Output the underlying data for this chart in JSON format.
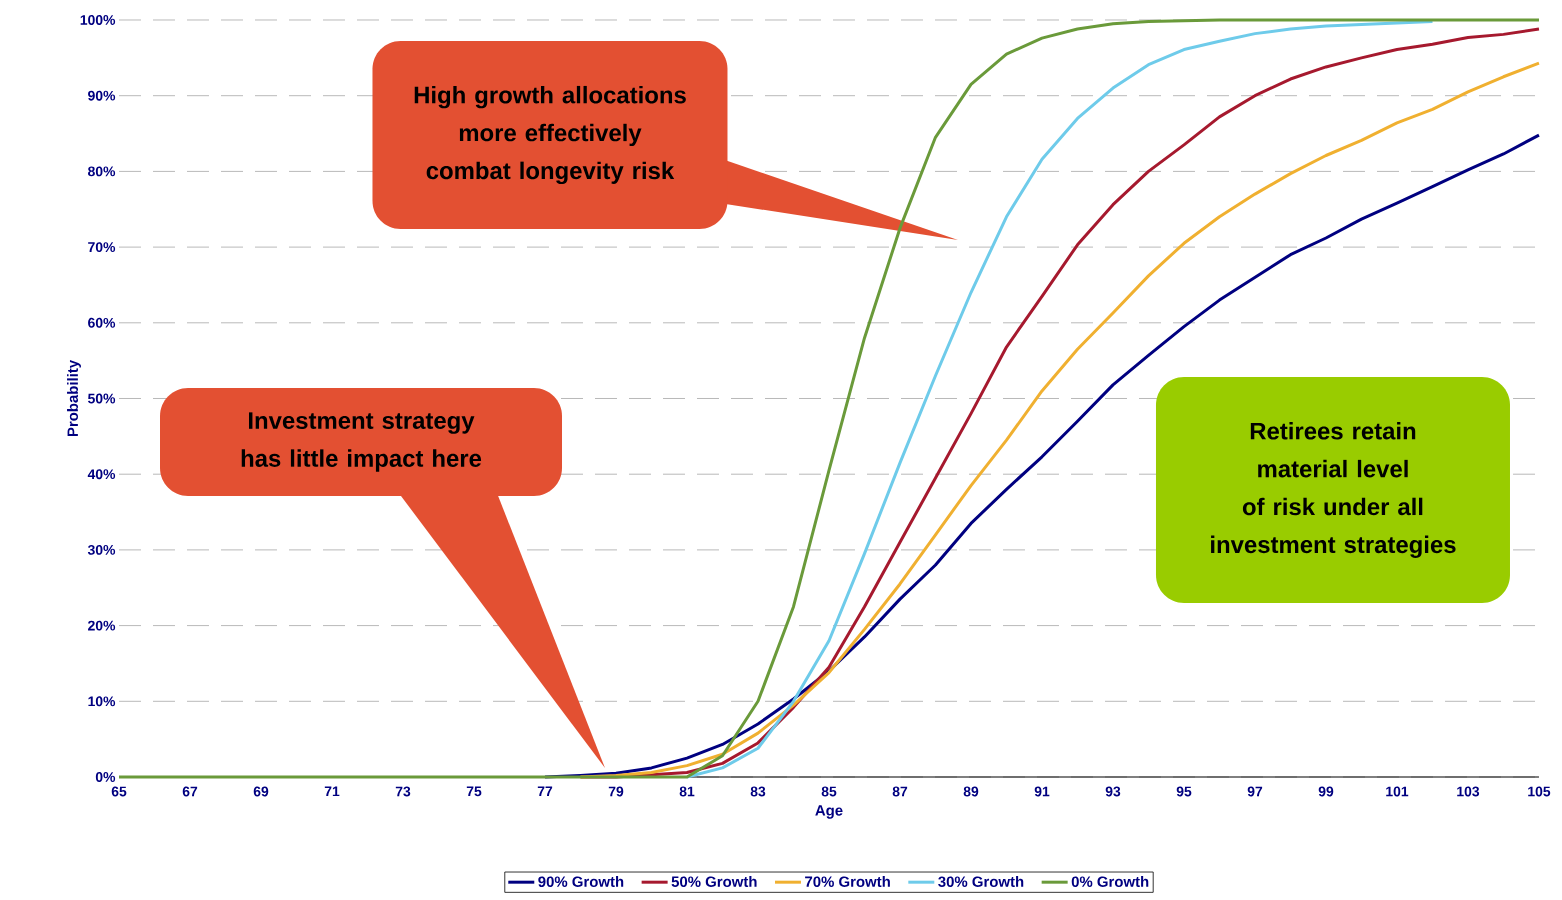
{
  "chart_data": {
    "type": "line",
    "xlabel": "Age",
    "ylabel": "Probability",
    "x": [
      65,
      66,
      67,
      68,
      69,
      70,
      71,
      72,
      73,
      74,
      75,
      76,
      77,
      78,
      79,
      80,
      81,
      82,
      83,
      84,
      85,
      86,
      87,
      88,
      89,
      90,
      91,
      92,
      93,
      94,
      95,
      96,
      97,
      98,
      99,
      100,
      101,
      102,
      103,
      104,
      105
    ],
    "series": [
      {
        "name": "90% Growth",
        "color": "#000080",
        "values": [
          null,
          null,
          null,
          null,
          null,
          null,
          null,
          null,
          null,
          null,
          null,
          null,
          0,
          0.2,
          0.5,
          1.2,
          2.5,
          4.3,
          7,
          10.3,
          14,
          18.5,
          23.5,
          28,
          33.5,
          38,
          42.3,
          47,
          51.8,
          55.7,
          59.5,
          63,
          66,
          69,
          71.2,
          73.7,
          75.8,
          78,
          80.2,
          82.3,
          84.8
        ]
      },
      {
        "name": "50% Growth",
        "color": "#a6192e",
        "values": [
          null,
          null,
          null,
          null,
          null,
          null,
          null,
          null,
          null,
          null,
          null,
          null,
          null,
          0,
          0,
          0.3,
          0.6,
          1.8,
          4.5,
          9.2,
          14.5,
          22.5,
          31,
          39.5,
          48,
          56.8,
          63.5,
          70.3,
          75.6,
          80,
          83.5,
          87.2,
          90,
          92.2,
          93.8,
          95,
          96.1,
          96.8,
          97.7,
          98.1,
          98.8
        ]
      },
      {
        "name": "70% Growth",
        "color": "#f0b030",
        "values": [
          null,
          null,
          null,
          null,
          null,
          null,
          null,
          null,
          null,
          null,
          null,
          null,
          null,
          0,
          0.2,
          0.6,
          1.5,
          3,
          5.8,
          9.5,
          13.8,
          19.5,
          25.5,
          32,
          38.5,
          44.5,
          51,
          56.5,
          61.3,
          66.2,
          70.5,
          74,
          77,
          79.7,
          82.1,
          84.1,
          86.4,
          88.2,
          90.5,
          92.5,
          94.3
        ]
      },
      {
        "name": "30% Growth",
        "color": "#6ecbea",
        "values": [
          null,
          null,
          null,
          null,
          null,
          null,
          null,
          null,
          null,
          null,
          null,
          null,
          null,
          null,
          null,
          null,
          0,
          1.2,
          3.8,
          10,
          18,
          29.5,
          41.5,
          53,
          64,
          74,
          81.6,
          87,
          91,
          94.1,
          96.1,
          97.2,
          98.2,
          98.8,
          99.2,
          99.4,
          99.6,
          99.8,
          null,
          null,
          null
        ]
      },
      {
        "name": "0% Growth",
        "color": "#6a9a3a",
        "values": [
          0,
          0,
          0,
          0,
          0,
          0,
          0,
          0,
          0,
          0,
          0,
          0,
          0,
          0,
          0,
          0,
          0,
          2.8,
          10,
          22.5,
          40.5,
          58,
          72.5,
          84.5,
          91.5,
          95.5,
          97.6,
          98.8,
          99.5,
          99.8,
          99.9,
          100,
          100,
          100,
          100,
          100,
          100,
          100,
          100,
          100,
          100
        ]
      }
    ],
    "xlim": [
      65,
      105
    ],
    "xticks": [
      65,
      67,
      69,
      71,
      73,
      75,
      77,
      79,
      81,
      83,
      85,
      87,
      89,
      91,
      93,
      95,
      97,
      99,
      101,
      103,
      105
    ],
    "ylim": [
      0,
      100
    ],
    "yticks": [
      {
        "value": 0,
        "label": "0%"
      },
      {
        "value": 10,
        "label": "10%"
      },
      {
        "value": 20,
        "label": "20%"
      },
      {
        "value": 30,
        "label": "30%"
      },
      {
        "value": 40,
        "label": "40%"
      },
      {
        "value": 50,
        "label": "50%"
      },
      {
        "value": 60,
        "label": "60%"
      },
      {
        "value": 70,
        "label": "70%"
      },
      {
        "value": 80,
        "label": "80%"
      },
      {
        "value": 90,
        "label": "90%"
      },
      {
        "value": 100,
        "label": "100%"
      }
    ],
    "grid": "y",
    "legend": "bottom",
    "marker": "none",
    "line_style": "solid",
    "annotations": [
      "High growth allocations more effectively combat longevity risk",
      "Investment strategy has little impact here",
      "Retirees retain material level of risk under all investment strategies"
    ]
  }
}
